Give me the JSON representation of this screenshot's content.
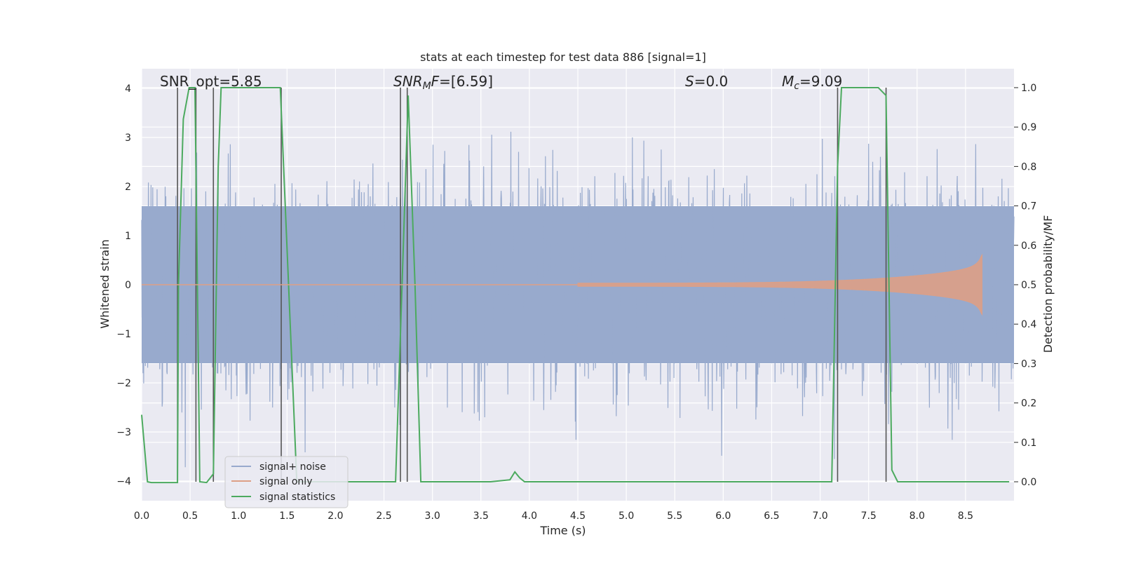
{
  "chart_data": {
    "type": "line",
    "title": "stats at each timestep for test data 886 [signal=1]",
    "xlabel": "Time (s)",
    "ylabel": "Whitened strain",
    "y2label": "Detection probability/MF",
    "xlim": [
      0.0,
      9.0
    ],
    "ylim": [
      -4.4,
      4.4
    ],
    "y2lim": [
      -0.048,
      1.048
    ],
    "x_ticks": [
      0.0,
      0.5,
      1.0,
      1.5,
      2.0,
      2.5,
      3.0,
      3.5,
      4.0,
      4.5,
      5.0,
      5.5,
      6.0,
      6.5,
      7.0,
      7.5,
      8.0,
      8.5
    ],
    "x_tick_labels": [
      "0.0",
      "0.5",
      "1.0",
      "1.5",
      "2.0",
      "2.5",
      "3.0",
      "3.5",
      "4.0",
      "4.5",
      "5.0",
      "5.5",
      "6.0",
      "6.5",
      "7.0",
      "7.5",
      "8.0",
      "8.5"
    ],
    "y_ticks": [
      -4,
      -3,
      -2,
      -1,
      0,
      1,
      2,
      3,
      4
    ],
    "y_tick_labels": [
      "−4",
      "−3",
      "−2",
      "−1",
      "0",
      "1",
      "2",
      "3",
      "4"
    ],
    "y2_ticks": [
      0.0,
      0.1,
      0.2,
      0.3,
      0.4,
      0.5,
      0.6,
      0.7,
      0.8,
      0.9,
      1.0
    ],
    "y2_tick_labels": [
      "0.0",
      "0.1",
      "0.2",
      "0.3",
      "0.4",
      "0.5",
      "0.6",
      "0.7",
      "0.8",
      "0.9",
      "1.0"
    ],
    "grid": true,
    "legend_position": "lower-left",
    "colors": {
      "background": "#eaeaf2",
      "grid": "#ffffff",
      "noise": "#98aacd",
      "signal": "#dd9f86",
      "stats": "#4caa5f",
      "vlines": "#555555"
    },
    "annotations": [
      {
        "text": "SNR_opt=5.85"
      },
      {
        "text": "SNR_MF=[6.59]"
      },
      {
        "text": "S=0.0"
      },
      {
        "text": "M_c=9.09"
      }
    ],
    "series": [
      {
        "name": "signal+ noise",
        "description": "whitened noisy strain, roughly Gaussian noise with amplitude about ±2.5, peaks to ±3.8",
        "noise_envelope": 1.6,
        "peak_abs": 3.8
      },
      {
        "name": "signal only",
        "description": "chirp waveform growing in amplitude until merger",
        "chirp_start": 4.5,
        "merger": 8.67,
        "peak_amplitude": 0.9
      },
      {
        "name": "signal statistics",
        "axis": "right",
        "x": [
          0.0,
          0.06,
          0.1,
          0.37,
          0.38,
          0.43,
          0.49,
          0.55,
          0.6,
          0.67,
          0.74,
          0.79,
          0.82,
          1.43,
          1.55,
          1.6,
          2.62,
          2.7,
          2.75,
          2.82,
          2.88,
          3.6,
          3.8,
          3.85,
          3.9,
          3.95,
          7.12,
          7.18,
          7.22,
          7.6,
          7.68,
          7.74,
          7.8,
          8.95
        ],
        "y": [
          0.17,
          0.0,
          -0.002,
          -0.002,
          0.5,
          0.92,
          1.0,
          1.0,
          0.0,
          -0.002,
          0.02,
          0.8,
          1.0,
          1.0,
          0.3,
          0.0,
          0.0,
          0.6,
          0.98,
          0.5,
          0.0,
          0.0,
          0.005,
          0.025,
          0.01,
          0.0,
          0.0,
          0.8,
          1.0,
          1.0,
          0.98,
          0.03,
          0.0,
          0.0
        ]
      }
    ],
    "vlines_x": [
      0.37,
      0.56,
      0.74,
      1.44,
      2.67,
      2.74,
      7.18,
      7.68
    ]
  }
}
